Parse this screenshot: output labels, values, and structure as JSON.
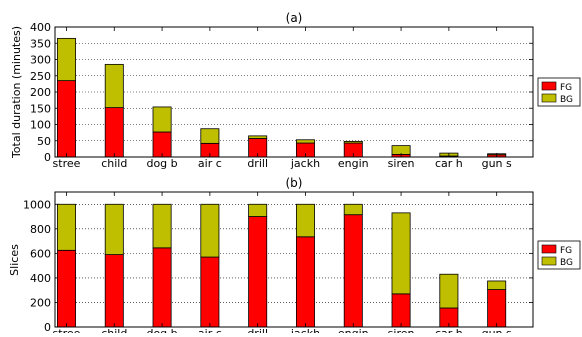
{
  "chart_data": [
    {
      "type": "bar",
      "stacked": true,
      "title": "(a)",
      "ylabel": "Total duration (minutes)",
      "xlabel": "",
      "ylim": [
        0,
        400
      ],
      "yticks": [
        "0",
        "50",
        "100",
        "150",
        "200",
        "250",
        "300",
        "350",
        "400"
      ],
      "categories": [
        "stree",
        "child",
        "dog b",
        "air c",
        "drill",
        "jackh",
        "engin",
        "siren",
        "car h",
        "gun s"
      ],
      "series": [
        {
          "name": "FG",
          "color": "#ff0000",
          "values": [
            235,
            152,
            77,
            42,
            57,
            43,
            43,
            8,
            3,
            7
          ]
        },
        {
          "name": "BG",
          "color": "#bfbf00",
          "values": [
            130,
            133,
            77,
            45,
            8,
            10,
            5,
            27,
            9,
            3
          ]
        }
      ],
      "grid": "horizontal-dotted",
      "legend_position": "right"
    },
    {
      "type": "bar",
      "stacked": true,
      "title": "(b)",
      "ylabel": "Slices",
      "xlabel": "",
      "ylim": [
        0,
        1100
      ],
      "yticks": [
        "0",
        "200",
        "400",
        "600",
        "800",
        "1000"
      ],
      "categories": [
        "stree",
        "child",
        "dog b",
        "air c",
        "drill",
        "jackh",
        "engin",
        "siren",
        "car h",
        "gun s"
      ],
      "series": [
        {
          "name": "FG",
          "color": "#ff0000",
          "values": [
            625,
            590,
            645,
            570,
            900,
            735,
            915,
            270,
            155,
            305
          ]
        },
        {
          "name": "BG",
          "color": "#bfbf00",
          "values": [
            375,
            410,
            355,
            430,
            100,
            265,
            85,
            660,
            275,
            70
          ]
        }
      ],
      "grid": "horizontal-dotted",
      "legend_position": "right"
    }
  ]
}
